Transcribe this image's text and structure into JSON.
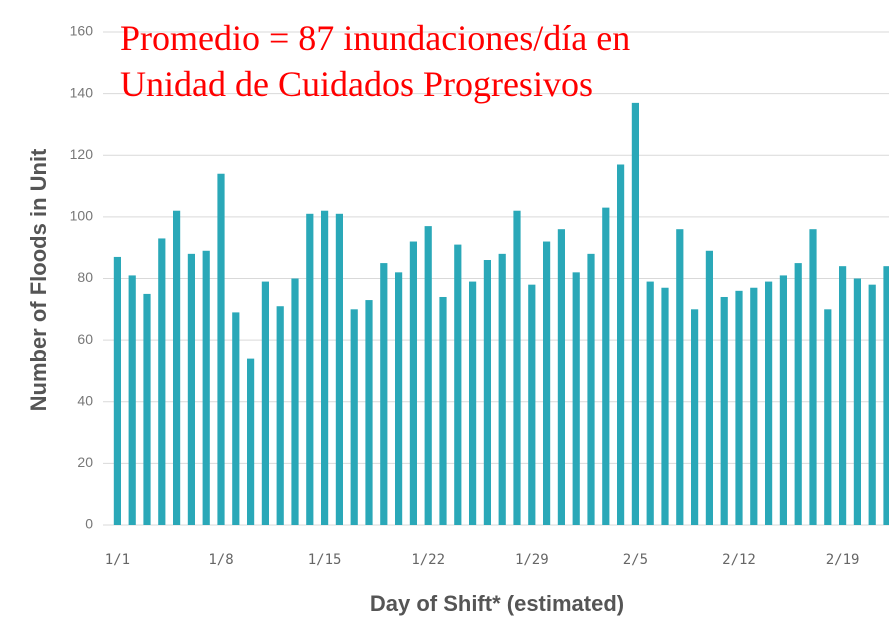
{
  "chart_data": {
    "type": "bar",
    "title_lines": [
      "Promedio = 87 inundaciones/día en",
      "Unidad de Cuidados Progresivos"
    ],
    "x_label": "Day of Shift* (estimated)",
    "y_label": "Number of Floods in Unit",
    "categories": [
      "1/1",
      null,
      null,
      null,
      null,
      null,
      null,
      "1/8",
      null,
      null,
      null,
      null,
      null,
      null,
      "1/15",
      null,
      null,
      null,
      null,
      null,
      null,
      "1/22",
      null,
      null,
      null,
      null,
      null,
      null,
      "1/29",
      null,
      null,
      null,
      null,
      null,
      null,
      "2/5",
      null,
      null,
      null,
      null,
      null,
      null,
      "2/12",
      null,
      null,
      null,
      null,
      null,
      null,
      "2/19",
      null,
      null,
      null
    ],
    "values": [
      87,
      81,
      75,
      93,
      102,
      88,
      89,
      114,
      69,
      54,
      79,
      71,
      80,
      101,
      102,
      101,
      70,
      73,
      85,
      82,
      92,
      97,
      74,
      91,
      79,
      86,
      88,
      102,
      78,
      92,
      96,
      82,
      88,
      103,
      117,
      137,
      79,
      77,
      96,
      70,
      89,
      74,
      76,
      77,
      79,
      81,
      85,
      96,
      70,
      84,
      80,
      78,
      84
    ],
    "color": "#2aa8b8",
    "ylim": [
      0,
      160
    ],
    "yticks": [
      0,
      20,
      40,
      60,
      80,
      100,
      120,
      140,
      160
    ],
    "grid": true
  }
}
